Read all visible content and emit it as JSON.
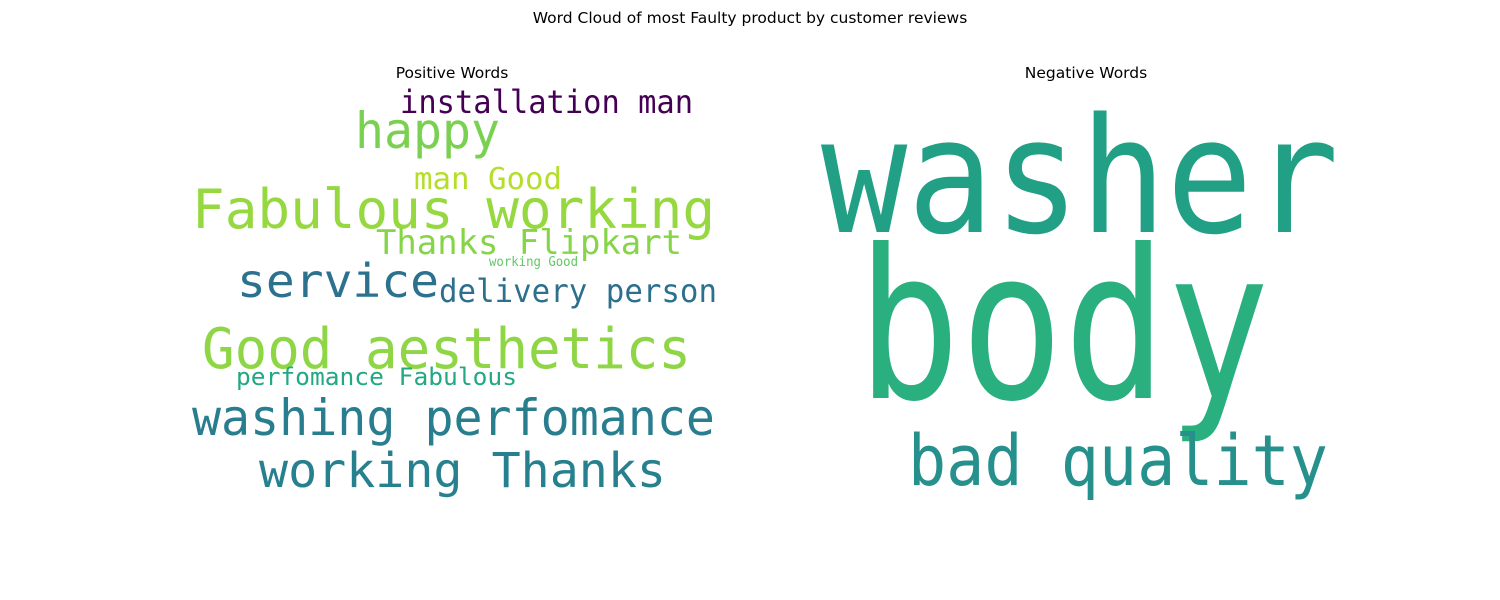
{
  "figure": {
    "title": "Word Cloud of most Faulty product by customer reviews"
  },
  "chart_data": [
    {
      "type": "wordcloud",
      "title": "Positive Words",
      "words": [
        {
          "text": "installation man",
          "color": "#440154"
        },
        {
          "text": "happy",
          "color": "#7ad151"
        },
        {
          "text": "man Good",
          "color": "#b5de2b"
        },
        {
          "text": "Fabulous working",
          "color": "#95d840"
        },
        {
          "text": "Thanks Flipkart",
          "color": "#86d549"
        },
        {
          "text": "working Good",
          "color": "#5ec962"
        },
        {
          "text": "service",
          "color": "#2c728e"
        },
        {
          "text": "delivery person",
          "color": "#2d708e"
        },
        {
          "text": "Good aesthetics",
          "color": "#8ed645"
        },
        {
          "text": "perfomance Fabulous",
          "color": "#22a884"
        },
        {
          "text": "washing perfomance",
          "color": "#287d8e"
        },
        {
          "text": "working Thanks",
          "color": "#27808e"
        }
      ]
    },
    {
      "type": "wordcloud",
      "title": "Negative Words",
      "words": [
        {
          "text": "washer",
          "color": "#21a085"
        },
        {
          "text": "body",
          "color": "#2aaf7f"
        },
        {
          "text": "bad quality",
          "color": "#25908c"
        }
      ]
    }
  ]
}
